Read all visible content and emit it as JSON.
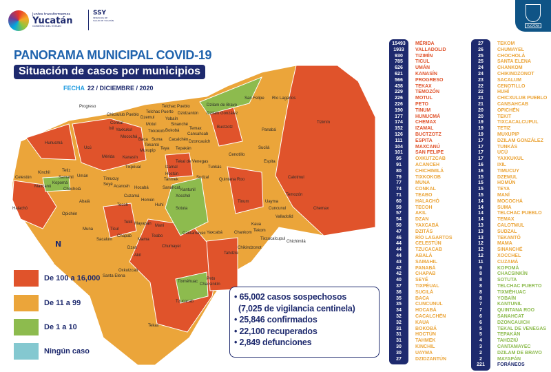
{
  "header": {
    "logo_top": "Juntos transformemos",
    "logo_main": "Yucatán",
    "logo_sub": "GOBIERNO DEL ESTADO",
    "ssy": "SSY",
    "ssy_sub": "SERVICIOS DE SALUD DE YUCATÁN",
    "shield_label": "YUCATÁN"
  },
  "title": "PANORAMA MUNICIPAL COVID-19",
  "subtitle": "Situación de casos por municipios",
  "fecha_label": "FECHA",
  "fecha": "22 / DICIEMBRE / 2020",
  "colors": {
    "red": "#e0532b",
    "orange": "#eba53a",
    "green": "#8dbb4e",
    "teal": "#84c8d0",
    "navy": "#1e2a6e"
  },
  "legend": [
    {
      "label": "De 100 a 16,000",
      "color": "#e0532b"
    },
    {
      "label": "De 11 a 99",
      "color": "#eba53a"
    },
    {
      "label": "De 1 a 10",
      "color": "#8dbb4e"
    },
    {
      "label": "Ningún caso",
      "color": "#84c8d0"
    }
  ],
  "stats": [
    "• 65,002 casos sospechosos",
    "(7,025 de vigilancia centinela)",
    "• 25,846 confirmados",
    "• 22,100 recuperados",
    "• 2,849 defunciones"
  ],
  "north": "N",
  "list1": [
    {
      "v": "15493",
      "n": "MÉRIDA"
    },
    {
      "v": "1933",
      "n": "VALLADOLID"
    },
    {
      "v": "930",
      "n": "TIZIMÍN"
    },
    {
      "v": "785",
      "n": "TICUL"
    },
    {
      "v": "626",
      "n": "UMÁN"
    },
    {
      "v": "621",
      "n": "KANASÍN"
    },
    {
      "v": "566",
      "n": "PROGRESO"
    },
    {
      "v": "438",
      "n": "TEKAX"
    },
    {
      "v": "229",
      "n": "TEMOZÓN"
    },
    {
      "v": "226",
      "n": "MOTUL"
    },
    {
      "v": "226",
      "n": "PETO"
    },
    {
      "v": "190",
      "n": "TINUM"
    },
    {
      "v": "177",
      "n": "HUNUCMÁ"
    },
    {
      "v": "174",
      "n": "CHEMAX"
    },
    {
      "v": "152",
      "n": "IZAMAL"
    },
    {
      "v": "126",
      "n": "BUCTZOTZ"
    },
    {
      "v": "111",
      "n": "ESPITA"
    },
    {
      "v": "104",
      "n": "MAXCANÚ"
    },
    {
      "v": "101",
      "n": "SAN FELIPE"
    },
    {
      "v": "95",
      "n": "OXKUTZCAB"
    },
    {
      "v": "91",
      "n": "ACANCEH"
    },
    {
      "v": "80",
      "n": "CHICHIMILÁ"
    },
    {
      "v": "79",
      "n": "TIXKOKOB"
    },
    {
      "v": "77",
      "n": "MUNA"
    },
    {
      "v": "74",
      "n": "CONKAL"
    },
    {
      "v": "71",
      "n": "TEABO"
    },
    {
      "v": "60",
      "n": "HALACHÓ"
    },
    {
      "v": "59",
      "n": "TECOH"
    },
    {
      "v": "57",
      "n": "AKIL"
    },
    {
      "v": "54",
      "n": "DZAN"
    },
    {
      "v": "50",
      "n": "YAXCABÁ"
    },
    {
      "v": "47",
      "n": "DZITÁS"
    },
    {
      "v": "46",
      "n": "RÍO LAGARTOS"
    },
    {
      "v": "44",
      "n": "CELESTÚN"
    },
    {
      "v": "44",
      "n": "TZUCACAB"
    },
    {
      "v": "44",
      "n": "ABALÁ"
    },
    {
      "v": "43",
      "n": "SAMAHIL"
    },
    {
      "v": "42",
      "n": "PANABÁ"
    },
    {
      "v": "42",
      "n": "CHAPAB"
    },
    {
      "v": "40",
      "n": "SEYÉ"
    },
    {
      "v": "37",
      "n": "TIXPÉUAL"
    },
    {
      "v": "36",
      "n": "SUCILÁ"
    },
    {
      "v": "35",
      "n": "BACA"
    },
    {
      "v": "35",
      "n": "CUNCUNUL"
    },
    {
      "v": "34",
      "n": "HOCABÁ"
    },
    {
      "v": "32",
      "n": "CACALCHÉN"
    },
    {
      "v": "32",
      "n": "KAUA"
    },
    {
      "v": "31",
      "n": "BOKOBÁ"
    },
    {
      "v": "31",
      "n": "HOCTÚN"
    },
    {
      "v": "31",
      "n": "TAHMEK"
    },
    {
      "v": "30",
      "n": "KINCHIL"
    },
    {
      "v": "30",
      "n": "UAYMA"
    },
    {
      "v": "27",
      "n": "DZIDZANTÚN"
    }
  ],
  "list2": [
    {
      "v": "27",
      "n": "TEKOM"
    },
    {
      "v": "26",
      "n": "CHUMAYEL"
    },
    {
      "v": "25",
      "n": "CHOCHOLÁ"
    },
    {
      "v": "25",
      "n": "SANTA ELENA"
    },
    {
      "v": "24",
      "n": "CHANKOM"
    },
    {
      "v": "24",
      "n": "CHIKINDZONOT"
    },
    {
      "v": "23",
      "n": "SACALUM"
    },
    {
      "v": "22",
      "n": "CENOTILLO"
    },
    {
      "v": "22",
      "n": "HUHÍ"
    },
    {
      "v": "21",
      "n": "CHICXULUB PUEBLO"
    },
    {
      "v": "21",
      "n": "CANSAHCAB"
    },
    {
      "v": "20",
      "n": "OPICHÉN"
    },
    {
      "v": "20",
      "n": "TEKIT"
    },
    {
      "v": "19",
      "n": "TIXCACALCUPUL"
    },
    {
      "v": "19",
      "n": "TETIZ"
    },
    {
      "v": "19",
      "n": "MUXUPIP"
    },
    {
      "v": "17",
      "n": "DZILAM GONZÁLEZ"
    },
    {
      "v": "17",
      "n": "TUNKÁS"
    },
    {
      "v": "17",
      "n": "UCÚ"
    },
    {
      "v": "17",
      "n": "YAXKUKUL"
    },
    {
      "v": "16",
      "n": "IXIL"
    },
    {
      "v": "16",
      "n": "TIMUCUY"
    },
    {
      "v": "15",
      "n": "DZEMUL"
    },
    {
      "v": "15",
      "n": "HOMÚN"
    },
    {
      "v": "15",
      "n": "TEYA"
    },
    {
      "v": "15",
      "n": "MANÍ"
    },
    {
      "v": "14",
      "n": "MOCOCHÁ"
    },
    {
      "v": "14",
      "n": "SUMA"
    },
    {
      "v": "14",
      "n": "TELCHAC PUEBLO"
    },
    {
      "v": "14",
      "n": "TEMAX"
    },
    {
      "v": "13",
      "n": "CALOTMUL"
    },
    {
      "v": "13",
      "n": "SUDZAL"
    },
    {
      "v": "13",
      "n": "TEKANTÓ"
    },
    {
      "v": "12",
      "n": "MAMA"
    },
    {
      "v": "12",
      "n": "SINANCHÉ"
    },
    {
      "v": "12",
      "n": "XOCCHEL"
    },
    {
      "v": "11",
      "n": "CUZAMÁ"
    },
    {
      "v": "9",
      "n": "KOPOMÁ"
    },
    {
      "v": "8",
      "n": "CHACSINKÍN"
    },
    {
      "v": "8",
      "n": "SOTUTA"
    },
    {
      "v": "8",
      "n": "TELCHAC PUERTO"
    },
    {
      "v": "8",
      "n": "TIXMÉHUAC"
    },
    {
      "v": "8",
      "n": "YOBAÍN"
    },
    {
      "v": "7",
      "n": "KANTUNIL"
    },
    {
      "v": "7",
      "n": "QUINTANA ROO"
    },
    {
      "v": "6",
      "n": "SANAHCAT"
    },
    {
      "v": "6",
      "n": "DZONCAUICH"
    },
    {
      "v": "5",
      "n": "TEKAL DE VENEGAS"
    },
    {
      "v": "5",
      "n": "TEPAKÁN"
    },
    {
      "v": "4",
      "n": "TAHDZIÚ"
    },
    {
      "v": "3",
      "n": "CANTAMAYEC"
    },
    {
      "v": "2",
      "n": "DZILAM DE BRAVO"
    },
    {
      "v": "2",
      "n": "MAYAPÁN"
    },
    {
      "v": "221",
      "n": "FORÁNEOS"
    }
  ],
  "map_labels": [
    "Río Lagartos",
    "San Felipe",
    "Dzilam de Bravo",
    "Dzilam González",
    "Progreso",
    "Telchac Puerto",
    "Dzidzantún",
    "Yobaín",
    "Sinanché",
    "Temax",
    "Buctzotz",
    "Panabá",
    "Sucilá",
    "Tizimín",
    "Hunucmá",
    "Ucú",
    "Mérida",
    "Kanasín",
    "Izamal",
    "Cenotillo",
    "Espita",
    "Calotmul",
    "Temozón",
    "Celestún",
    "Kinchil",
    "Samahil",
    "Umán",
    "Chocholá",
    "Maxcanú",
    "Halachó",
    "Kopomá",
    "Opichén",
    "Abalá",
    "Tecoh",
    "Cuzamá",
    "Homún",
    "Huhí",
    "Sotuta",
    "Tinum",
    "Valladolid",
    "Chemax",
    "Uayma",
    "Chankom",
    "Kaua",
    "Cuncunul",
    "Yaxcabá",
    "Tekom",
    "Tixcacalcupul",
    "Chichimilá",
    "Chikindzonot",
    "Peto",
    "Tahdziú",
    "Chacsinkín",
    "Tixméhuac",
    "Tzucacab",
    "Tekax",
    "Oxkutzcab",
    "Akil",
    "Santa Elena",
    "Muna",
    "Ticul",
    "Sacalum",
    "Chapab",
    "Mama",
    "Teabo",
    "Maní",
    "Chumayel",
    "Cantamayec",
    "Tekit",
    "Mayapán",
    "Tunkás",
    "Quintana Roo",
    "Sudzal",
    "Kantunil",
    "Hoctún",
    "Tahmek",
    "Xocchel",
    "Seyé",
    "Acanceh",
    "Timucuy",
    "Tekantó",
    "Teya",
    "Tepakán",
    "Cacalchén",
    "Bokobá",
    "Tixkokob",
    "Tixpéual",
    "Yaxkukul",
    "Conkal",
    "Chicxulub Pueblo",
    "Ixil",
    "Mocochá",
    "Baca",
    "Motul",
    "Muxupip",
    "Suma",
    "Cansahcab",
    "Dzemul",
    "Telchac Pueblo",
    "Tetiz",
    "Hocabá",
    "Sanahcat",
    "Tekal de Venegas",
    "Dzoncauich",
    "Dzan"
  ]
}
